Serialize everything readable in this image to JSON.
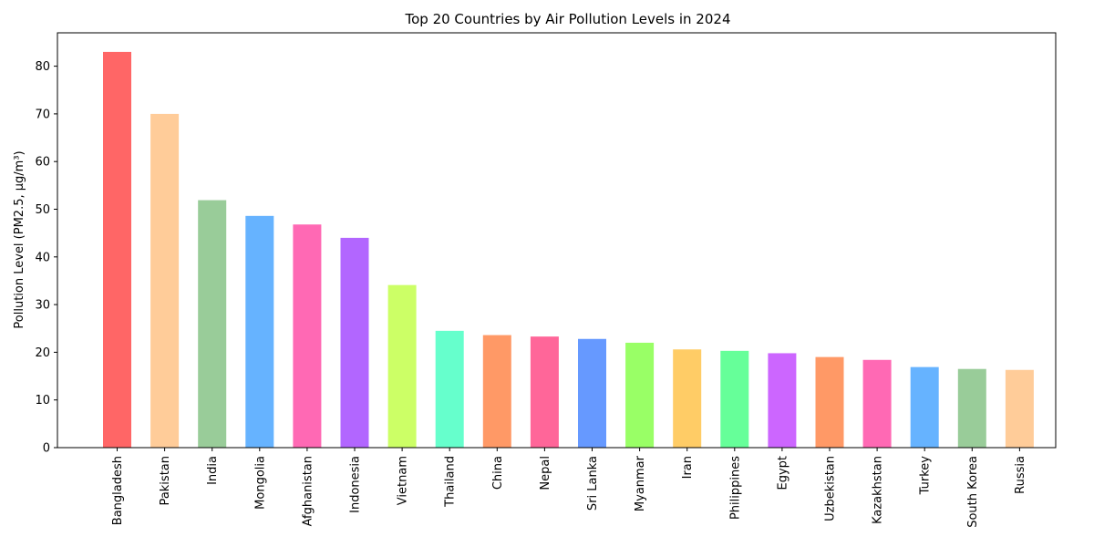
{
  "chart_data": {
    "type": "bar",
    "title": "Top 20 Countries by Air Pollution Levels in 2024",
    "xlabel": "",
    "ylabel": "Pollution Level (PM2.5, µg/m³)",
    "ylim": [
      0,
      87
    ],
    "yticks": [
      0,
      10,
      20,
      30,
      40,
      50,
      60,
      70,
      80
    ],
    "grid": false,
    "categories": [
      "Bangladesh",
      "Pakistan",
      "India",
      "Mongolia",
      "Afghanistan",
      "Indonesia",
      "Vietnam",
      "Thailand",
      "China",
      "Nepal",
      "Sri Lanka",
      "Myanmar",
      "Iran",
      "Philippines",
      "Egypt",
      "Uzbekistan",
      "Kazakhstan",
      "Turkey",
      "South Korea",
      "Russia"
    ],
    "values": [
      83.0,
      70.0,
      51.9,
      48.6,
      46.8,
      44.0,
      34.1,
      24.5,
      23.6,
      23.3,
      22.8,
      22.0,
      20.6,
      20.3,
      19.8,
      19.0,
      18.4,
      16.9,
      16.5,
      16.3
    ],
    "colors": [
      "#ff6666",
      "#ffcc99",
      "#99cc99",
      "#66b3ff",
      "#ff69b4",
      "#b266ff",
      "#ccff66",
      "#66ffcc",
      "#ff9966",
      "#ff6699",
      "#6699ff",
      "#99ff66",
      "#ffcc66",
      "#66ff99",
      "#cc66ff",
      "#ff9966",
      "#ff69b4",
      "#66b3ff",
      "#99cc99",
      "#ffcc99"
    ]
  }
}
